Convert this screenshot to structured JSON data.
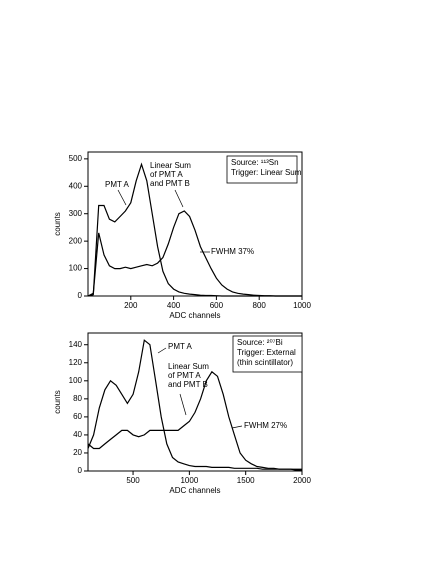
{
  "chart_data": [
    {
      "type": "line",
      "x_label": "ADC channels",
      "y_label": "counts",
      "x": [
        0,
        25,
        50,
        75,
        100,
        125,
        150,
        175,
        200,
        225,
        250,
        275,
        300,
        325,
        350,
        375,
        400,
        425,
        450,
        475,
        500,
        525,
        550,
        575,
        600,
        625,
        650,
        675,
        700,
        725,
        750,
        775,
        800,
        825,
        850,
        875,
        900,
        925,
        950,
        975,
        1000
      ],
      "series": [
        {
          "color": "#000000",
          "values": [
            0,
            5,
            330,
            330,
            280,
            270,
            290,
            310,
            340,
            420,
            480,
            420,
            300,
            180,
            90,
            45,
            25,
            15,
            10,
            7,
            5,
            3,
            2,
            2,
            1,
            0,
            0,
            0,
            0,
            0,
            0,
            0,
            0,
            0,
            0,
            0,
            0,
            0,
            0,
            0,
            0
          ]
        },
        {
          "color": "#000000",
          "values": [
            0,
            10,
            230,
            150,
            110,
            100,
            100,
            105,
            100,
            105,
            110,
            115,
            110,
            120,
            140,
            190,
            250,
            300,
            310,
            290,
            240,
            180,
            140,
            100,
            65,
            40,
            25,
            15,
            10,
            7,
            5,
            3,
            2,
            1,
            1,
            0,
            0,
            0,
            0,
            0,
            0
          ]
        }
      ],
      "xlim": [
        0,
        1000
      ],
      "xticks": [
        200,
        400,
        600,
        800,
        1000
      ],
      "ylim": [
        0,
        525
      ],
      "yticks": [
        0,
        100,
        200,
        300,
        400,
        500
      ],
      "annotations": [
        [
          "PMT A"
        ],
        [
          "Linear Sum",
          "of PMT A",
          "and PMT B"
        ],
        [
          "FWHM 37%"
        ]
      ],
      "info_box": [
        "Source: ¹¹³Sn",
        "Trigger: Linear Sum"
      ]
    },
    {
      "type": "line",
      "x_label": "ADC channels",
      "y_label": "counts",
      "x": [
        100,
        150,
        200,
        250,
        300,
        350,
        400,
        450,
        500,
        550,
        600,
        650,
        700,
        750,
        800,
        850,
        900,
        950,
        1000,
        1050,
        1100,
        1150,
        1200,
        1250,
        1300,
        1350,
        1400,
        1450,
        1500,
        1550,
        1600,
        1650,
        1700,
        1750,
        1800,
        1850,
        1900,
        1950,
        2000
      ],
      "series": [
        {
          "color": "#000000",
          "values": [
            25,
            40,
            70,
            90,
            100,
            95,
            85,
            75,
            85,
            110,
            145,
            140,
            100,
            60,
            30,
            15,
            10,
            8,
            6,
            5,
            5,
            5,
            4,
            4,
            4,
            4,
            3,
            3,
            3,
            3,
            3,
            2,
            2,
            2,
            2,
            2,
            2,
            2,
            2
          ]
        },
        {
          "color": "#000000",
          "values": [
            30,
            25,
            25,
            30,
            35,
            40,
            45,
            45,
            40,
            38,
            40,
            45,
            45,
            45,
            45,
            45,
            45,
            50,
            55,
            65,
            80,
            100,
            110,
            105,
            85,
            60,
            40,
            20,
            12,
            8,
            5,
            4,
            3,
            3,
            2,
            2,
            2,
            1,
            1
          ]
        }
      ],
      "xlim": [
        100,
        2000
      ],
      "xticks": [
        500,
        1000,
        1500,
        2000
      ],
      "ylim": [
        0,
        153
      ],
      "yticks": [
        0,
        20,
        40,
        60,
        80,
        100,
        120,
        140
      ],
      "annotations": [
        [
          "PMT A"
        ],
        [
          "Linear Sum",
          "of PMT A",
          "and PMT B"
        ],
        [
          "FWHM 27%"
        ]
      ],
      "info_box": [
        "Source: ²⁰⁷Bi",
        "Trigger: External",
        "(thin scintillator)"
      ]
    }
  ]
}
